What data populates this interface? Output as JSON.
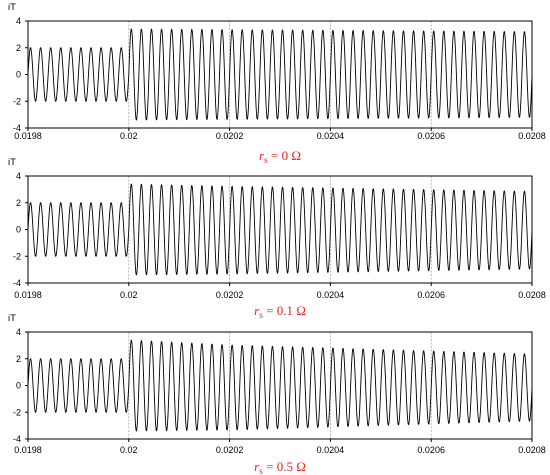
{
  "chart_data": [
    {
      "type": "line",
      "ylabel": "iT",
      "caption": {
        "symbol": "r",
        "subscript": "s",
        "rest": " = 0 Ω"
      },
      "xlim": [
        0.0198,
        0.0208
      ],
      "ylim": [
        -4,
        4
      ],
      "x_ticks": [
        "0.0198",
        "0.02",
        "0.0202",
        "0.0204",
        "0.0206",
        "0.0208"
      ],
      "y_ticks": [
        "4",
        "2",
        "0",
        "-2",
        "-4"
      ],
      "grid": {
        "vertical": true,
        "horizontal": false
      },
      "waveform": {
        "frequency_hz": 50000,
        "step_time": 0.02,
        "amplitude_before": 2.0,
        "amplitude_after_start": 3.4,
        "amplitude_after_end": 3.2,
        "offset_before": 0.0,
        "offset_after": 0.0
      },
      "series_color": "#000000"
    },
    {
      "type": "line",
      "ylabel": "iT",
      "caption": {
        "symbol": "r",
        "subscript": "s",
        "rest": " = 0.1 Ω"
      },
      "xlim": [
        0.0198,
        0.0208
      ],
      "ylim": [
        -4,
        4
      ],
      "x_ticks": [
        "0.0198",
        "0.02",
        "0.0202",
        "0.0204",
        "0.0206",
        "0.0208"
      ],
      "y_ticks": [
        "4",
        "2",
        "0",
        "-2",
        "-4"
      ],
      "grid": {
        "vertical": true,
        "horizontal": false
      },
      "waveform": {
        "frequency_hz": 50000,
        "step_time": 0.02,
        "amplitude_before": 2.0,
        "amplitude_after_start": 3.4,
        "amplitude_after_end": 2.9,
        "offset_before": 0.0,
        "offset_after": -0.05
      },
      "series_color": "#000000"
    },
    {
      "type": "line",
      "ylabel": "iT",
      "caption": {
        "symbol": "r",
        "subscript": "s",
        "rest": " = 0.5 Ω"
      },
      "xlim": [
        0.0198,
        0.0208
      ],
      "ylim": [
        -4,
        4
      ],
      "x_ticks": [
        "0.0198",
        "0.02",
        "0.0202",
        "0.0204",
        "0.0206",
        "0.0208"
      ],
      "y_ticks": [
        "4",
        "2",
        "0",
        "-2",
        "-4"
      ],
      "grid": {
        "vertical": true,
        "horizontal": false
      },
      "waveform": {
        "frequency_hz": 50000,
        "step_time": 0.02,
        "amplitude_before": 2.0,
        "amplitude_after_start": 3.4,
        "amplitude_after_end": 2.5,
        "offset_before": 0.0,
        "offset_after": -0.15
      },
      "series_color": "#000000"
    }
  ],
  "colors": {
    "caption": "#e8231f",
    "grid": "#9a9a9a",
    "axis": "#000000"
  }
}
